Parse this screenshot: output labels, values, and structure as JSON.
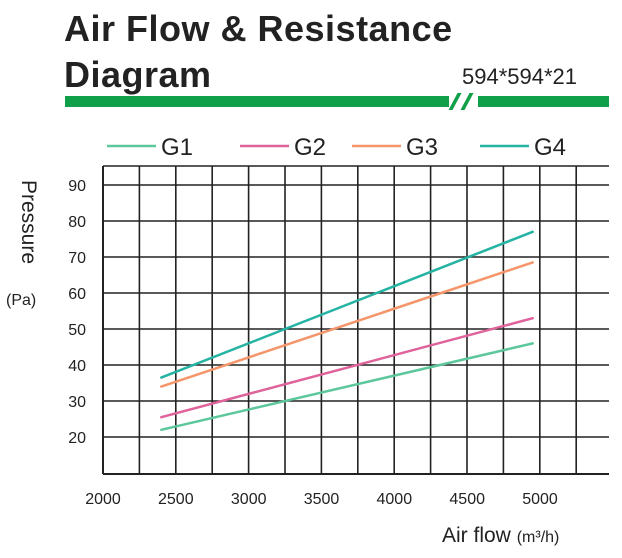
{
  "header": {
    "title_line1": "Air Flow & Resistance",
    "title_line2": "Diagram",
    "size": "594*594*21",
    "accent": "#11a04a"
  },
  "chart_data": {
    "type": "line",
    "x_ticks": [
      "2000",
      "2500",
      "3000",
      "3500",
      "4000",
      "4500",
      "5000"
    ],
    "y_ticks": [
      "20",
      "30",
      "40",
      "50",
      "60",
      "70",
      "80",
      "90"
    ],
    "xlim": [
      2000,
      5000
    ],
    "ylim": [
      20,
      90
    ],
    "xlabel": "Air flow",
    "xunit": "(m³/h)",
    "ylabel": "Pressure",
    "yunit": "(Pa)",
    "grid": true,
    "legend_position": "top",
    "series": [
      {
        "name": "G1",
        "color": "#5cc79a",
        "x": [
          2400,
          4950
        ],
        "y": [
          22,
          46
        ]
      },
      {
        "name": "G2",
        "color": "#e0629b",
        "x": [
          2400,
          4950
        ],
        "y": [
          25.5,
          53
        ]
      },
      {
        "name": "G3",
        "color": "#f4956a",
        "x": [
          2400,
          4950
        ],
        "y": [
          34,
          68.5
        ]
      },
      {
        "name": "G4",
        "color": "#25b3a3",
        "x": [
          2400,
          4950
        ],
        "y": [
          36.5,
          77
        ]
      }
    ]
  }
}
